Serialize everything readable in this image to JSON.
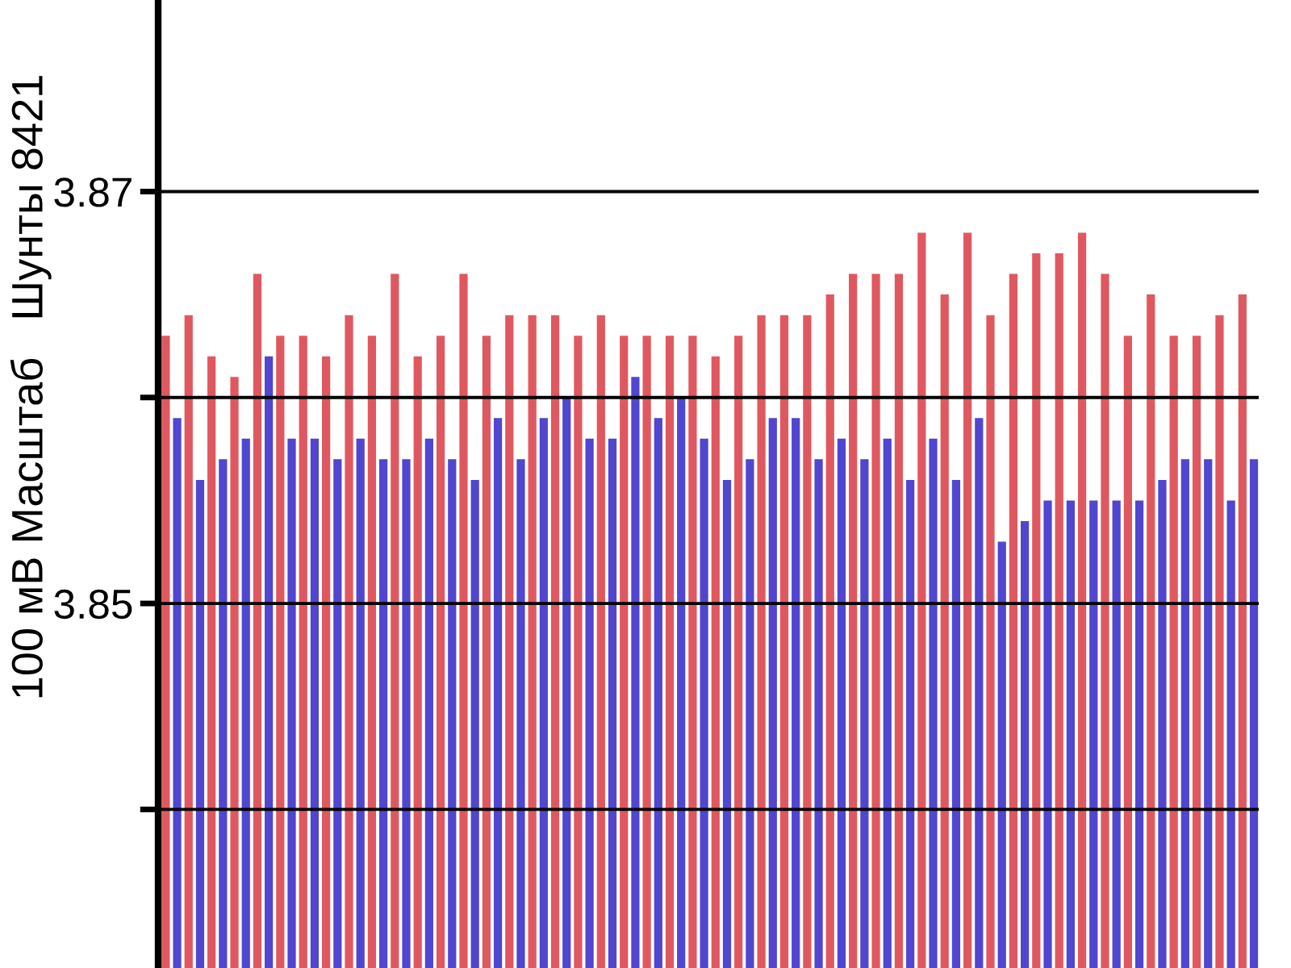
{
  "chart_data": {
    "type": "bar",
    "ylabel": "100 мВ Масштаб   Шунты 8421",
    "categories": [
      null,
      null,
      null,
      null,
      null,
      null,
      null,
      null,
      null,
      null,
      null,
      null,
      null,
      null,
      null,
      null,
      null,
      null,
      null,
      null,
      null,
      null,
      null,
      null,
      null,
      null,
      null,
      null,
      null,
      null,
      null,
      null,
      null,
      null,
      null,
      null,
      null,
      null,
      null,
      null,
      null,
      null,
      null,
      null,
      null,
      null,
      null,
      null
    ],
    "series": [
      {
        "color": "#e0585f",
        "values": [
          3.863,
          3.864,
          3.862,
          3.861,
          3.866,
          3.863,
          3.863,
          3.862,
          3.864,
          3.863,
          3.866,
          3.862,
          3.863,
          3.866,
          3.863,
          3.864,
          3.864,
          3.864,
          3.863,
          3.864,
          3.863,
          3.863,
          3.863,
          3.863,
          3.862,
          3.863,
          3.864,
          3.864,
          3.864,
          3.865,
          3.866,
          3.866,
          3.866,
          3.868,
          3.865,
          3.868,
          3.864,
          3.866,
          3.867,
          3.867,
          3.868,
          3.866,
          3.863,
          3.865,
          3.863,
          3.863,
          3.864,
          3.865
        ]
      },
      {
        "color": "#5046cf",
        "values": [
          3.859,
          3.856,
          3.857,
          3.858,
          3.862,
          3.858,
          3.858,
          3.857,
          3.858,
          3.857,
          3.857,
          3.858,
          3.857,
          3.856,
          3.859,
          3.857,
          3.859,
          3.86,
          3.858,
          3.858,
          3.861,
          3.859,
          3.86,
          3.858,
          3.856,
          3.857,
          3.859,
          3.859,
          3.857,
          3.858,
          3.857,
          3.858,
          3.856,
          3.858,
          3.856,
          3.859,
          3.853,
          3.854,
          3.855,
          3.855,
          3.855,
          3.855,
          3.855,
          3.856,
          3.857,
          3.857,
          3.855,
          3.857
        ]
      }
    ],
    "ylim": [
      3.8323,
      3.8793
    ],
    "yticks": [
      {
        "value": 3.84,
        "label": null
      },
      3.85,
      {
        "value": 3.86,
        "label": null
      },
      3.87
    ],
    "grid": "y",
    "tick_labels": "y"
  }
}
